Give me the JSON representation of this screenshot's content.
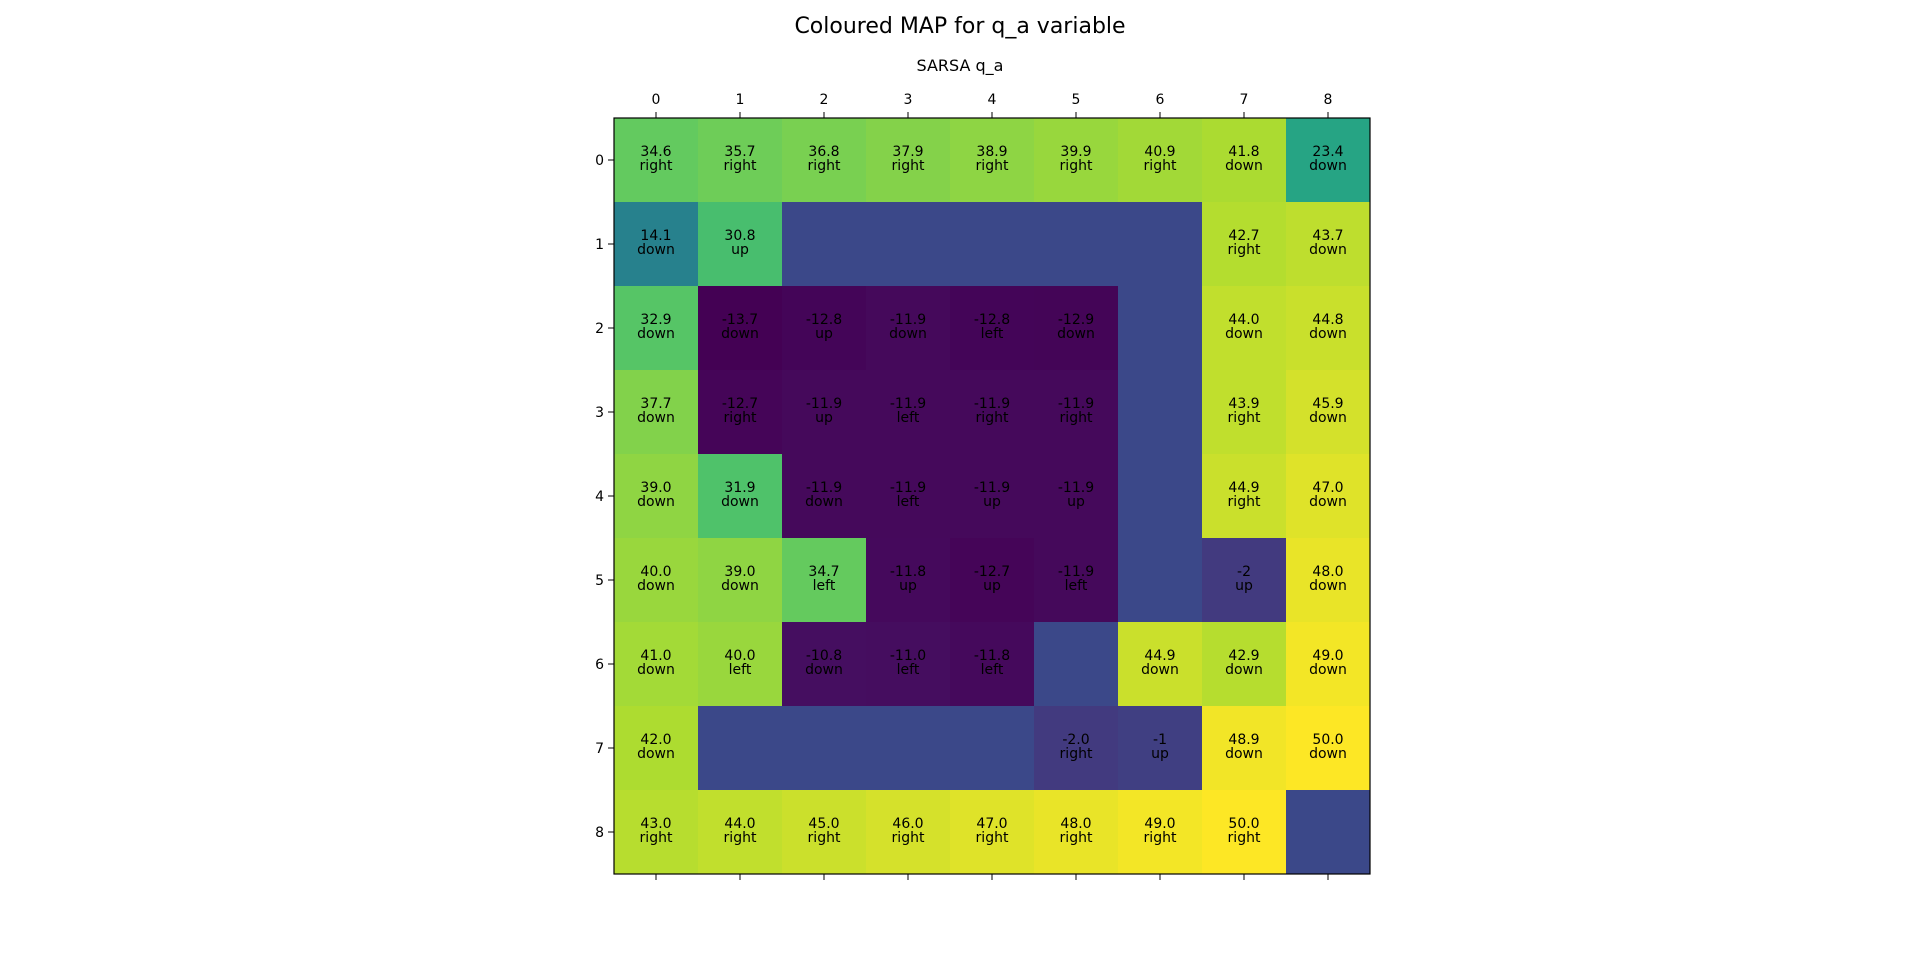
{
  "figure": {
    "suptitle": "Coloured MAP for q_a variable"
  },
  "chart_data": {
    "type": "heatmap",
    "title": "SARSA q_a",
    "x_ticks": [
      "0",
      "1",
      "2",
      "3",
      "4",
      "5",
      "6",
      "7",
      "8"
    ],
    "y_ticks": [
      "0",
      "1",
      "2",
      "3",
      "4",
      "5",
      "6",
      "7",
      "8"
    ],
    "colormap": "viridis",
    "wall_color": "#3b4889",
    "values": [
      [
        34.6,
        35.7,
        36.8,
        37.9,
        38.9,
        39.9,
        40.9,
        41.8,
        23.4
      ],
      [
        14.1,
        30.8,
        null,
        null,
        null,
        null,
        null,
        42.7,
        43.7
      ],
      [
        32.9,
        -13.7,
        -12.8,
        -11.9,
        -12.8,
        -12.9,
        null,
        44.0,
        44.8
      ],
      [
        37.7,
        -12.7,
        -11.9,
        -11.9,
        -11.9,
        -11.9,
        null,
        43.9,
        45.9
      ],
      [
        39.0,
        31.9,
        -11.9,
        -11.9,
        -11.9,
        -11.9,
        null,
        44.9,
        47.0
      ],
      [
        40.0,
        39.0,
        34.7,
        -11.8,
        -12.7,
        -11.9,
        null,
        -2,
        48.0
      ],
      [
        41.0,
        40.0,
        -10.8,
        -11.0,
        -11.8,
        null,
        44.9,
        42.9,
        49.0
      ],
      [
        42.0,
        null,
        null,
        null,
        null,
        -2.0,
        -1,
        48.9,
        50.0
      ],
      [
        43.0,
        44.0,
        45.0,
        46.0,
        47.0,
        48.0,
        49.0,
        50.0,
        null
      ]
    ],
    "value_labels": [
      [
        "34.6",
        "35.7",
        "36.8",
        "37.9",
        "38.9",
        "39.9",
        "40.9",
        "41.8",
        "23.4"
      ],
      [
        "14.1",
        "30.8",
        "",
        "",
        "",
        "",
        "",
        "42.7",
        "43.7"
      ],
      [
        "32.9",
        "-13.7",
        "-12.8",
        "-11.9",
        "-12.8",
        "-12.9",
        "",
        "44.0",
        "44.8"
      ],
      [
        "37.7",
        "-12.7",
        "-11.9",
        "-11.9",
        "-11.9",
        "-11.9",
        "",
        "43.9",
        "45.9"
      ],
      [
        "39.0",
        "31.9",
        "-11.9",
        "-11.9",
        "-11.9",
        "-11.9",
        "",
        "44.9",
        "47.0"
      ],
      [
        "40.0",
        "39.0",
        "34.7",
        "-11.8",
        "-12.7",
        "-11.9",
        "",
        "-2",
        "48.0"
      ],
      [
        "41.0",
        "40.0",
        "-10.8",
        "-11.0",
        "-11.8",
        "",
        "44.9",
        "42.9",
        "49.0"
      ],
      [
        "42.0",
        "",
        "",
        "",
        "",
        "-2.0",
        "-1",
        "48.9",
        "50.0"
      ],
      [
        "43.0",
        "44.0",
        "45.0",
        "46.0",
        "47.0",
        "48.0",
        "49.0",
        "50.0",
        ""
      ]
    ],
    "actions": [
      [
        "right",
        "right",
        "right",
        "right",
        "right",
        "right",
        "right",
        "down",
        "down"
      ],
      [
        "down",
        "up",
        "",
        "",
        "",
        "",
        "",
        "right",
        "down"
      ],
      [
        "down",
        "down",
        "up",
        "down",
        "left",
        "down",
        "",
        "down",
        "down"
      ],
      [
        "down",
        "right",
        "up",
        "left",
        "right",
        "right",
        "",
        "right",
        "down"
      ],
      [
        "down",
        "down",
        "down",
        "left",
        "up",
        "up",
        "",
        "right",
        "down"
      ],
      [
        "down",
        "down",
        "left",
        "up",
        "up",
        "left",
        "",
        "up",
        "down"
      ],
      [
        "down",
        "left",
        "down",
        "left",
        "left",
        "",
        "down",
        "down",
        "down"
      ],
      [
        "down",
        "",
        "",
        "",
        "",
        "right",
        "up",
        "down",
        "down"
      ],
      [
        "right",
        "right",
        "right",
        "right",
        "right",
        "right",
        "right",
        "right",
        ""
      ]
    ]
  }
}
